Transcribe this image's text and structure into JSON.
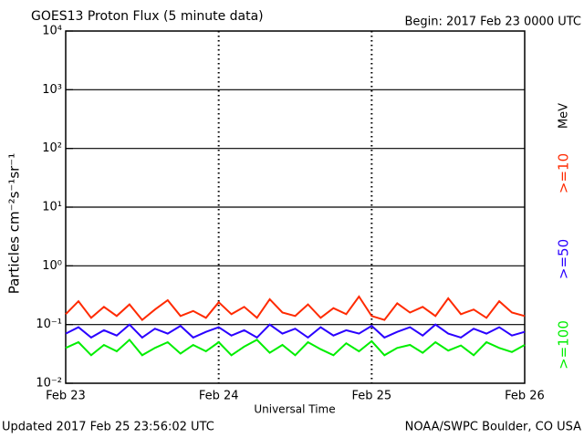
{
  "chart_data": {
    "type": "line",
    "title": "GOES13 Proton Flux (5 minute data)",
    "subtitle": "Begin: 2017 Feb 23 0000 UTC",
    "x_label": "Universal Time",
    "y_label": "Particles cm⁻²s⁻¹sr⁻¹",
    "legend_unit": "MeV",
    "footer_left": "Updated 2017 Feb 25 23:56:02 UTC",
    "footer_right": "NOAA/SWPC Boulder, CO USA",
    "log_y": true,
    "grid": true,
    "xlim": [
      0,
      72
    ],
    "xticks": [
      {
        "value": 0,
        "label": "Feb 23"
      },
      {
        "value": 24,
        "label": "Feb 24"
      },
      {
        "value": 48,
        "label": "Feb 25"
      },
      {
        "value": 72,
        "label": "Feb 26"
      }
    ],
    "ylim": [
      0.01,
      10000
    ],
    "yticks": [
      {
        "value": 0.01,
        "label": "10⁻²"
      },
      {
        "value": 0.1,
        "label": "10⁻¹"
      },
      {
        "value": 1,
        "label": "10⁰"
      },
      {
        "value": 10,
        "label": "10¹"
      },
      {
        "value": 100,
        "label": "10²"
      },
      {
        "value": 1000,
        "label": "10³"
      },
      {
        "value": 10000,
        "label": "10⁴"
      }
    ],
    "x": [
      0,
      2,
      4,
      6,
      8,
      10,
      12,
      14,
      16,
      18,
      20,
      22,
      24,
      26,
      28,
      30,
      32,
      34,
      36,
      38,
      40,
      42,
      44,
      46,
      48,
      50,
      52,
      54,
      56,
      58,
      60,
      62,
      64,
      66,
      68,
      70,
      72
    ],
    "series": [
      {
        "name": ">=10",
        "color": "#ff2a00",
        "values": [
          0.15,
          0.25,
          0.13,
          0.2,
          0.14,
          0.22,
          0.12,
          0.18,
          0.26,
          0.14,
          0.17,
          0.13,
          0.24,
          0.15,
          0.2,
          0.13,
          0.27,
          0.16,
          0.14,
          0.22,
          0.13,
          0.19,
          0.15,
          0.3,
          0.14,
          0.12,
          0.23,
          0.16,
          0.2,
          0.14,
          0.28,
          0.15,
          0.18,
          0.13,
          0.25,
          0.16,
          0.14
        ]
      },
      {
        "name": ">=50",
        "color": "#2a00ff",
        "values": [
          0.07,
          0.09,
          0.06,
          0.08,
          0.065,
          0.1,
          0.06,
          0.085,
          0.07,
          0.095,
          0.06,
          0.075,
          0.09,
          0.065,
          0.08,
          0.06,
          0.1,
          0.07,
          0.085,
          0.06,
          0.09,
          0.065,
          0.08,
          0.07,
          0.095,
          0.06,
          0.075,
          0.09,
          0.065,
          0.1,
          0.07,
          0.06,
          0.085,
          0.07,
          0.09,
          0.065,
          0.075
        ]
      },
      {
        "name": ">=100",
        "color": "#00ee00",
        "values": [
          0.04,
          0.05,
          0.03,
          0.045,
          0.035,
          0.055,
          0.03,
          0.04,
          0.05,
          0.032,
          0.045,
          0.035,
          0.05,
          0.03,
          0.042,
          0.055,
          0.033,
          0.045,
          0.03,
          0.05,
          0.038,
          0.03,
          0.048,
          0.035,
          0.052,
          0.03,
          0.04,
          0.045,
          0.033,
          0.05,
          0.036,
          0.044,
          0.03,
          0.05,
          0.04,
          0.034,
          0.045
        ]
      }
    ]
  }
}
